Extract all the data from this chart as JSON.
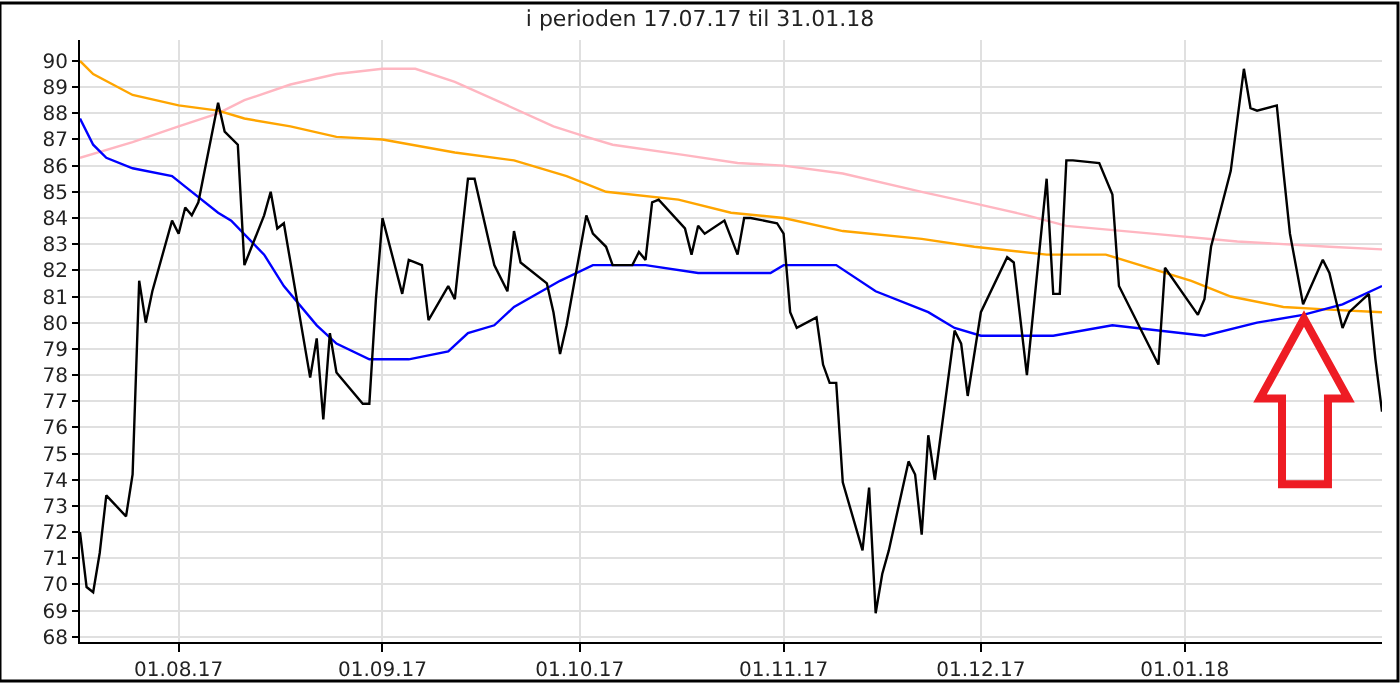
{
  "chart_data": {
    "type": "line",
    "title": "i perioden 17.07.17 til 31.01.18",
    "xlim": [
      "2017-07-17",
      "2018-01-31"
    ],
    "xticks": [
      {
        "value": "2017-08-01",
        "label": "01.08.17"
      },
      {
        "value": "2017-09-01",
        "label": "01.09.17"
      },
      {
        "value": "2017-10-01",
        "label": "01.10.17"
      },
      {
        "value": "2017-11-01",
        "label": "01.11.17"
      },
      {
        "value": "2017-12-01",
        "label": "01.12.17"
      },
      {
        "value": "2018-01-01",
        "label": "01.01.18"
      }
    ],
    "ylim": [
      67.8,
      90.8
    ],
    "yticks": [
      68,
      69,
      70,
      71,
      72,
      73,
      74,
      75,
      76,
      77,
      78,
      79,
      80,
      81,
      82,
      83,
      84,
      85,
      86,
      87,
      88,
      89,
      90
    ],
    "grid": true,
    "marker": "none",
    "line_style": "solid",
    "series": [
      {
        "color": "#ffb6c1",
        "x": [
          "2017-07-17",
          "2017-07-25",
          "2017-08-01",
          "2017-08-07",
          "2017-08-11",
          "2017-08-18",
          "2017-08-25",
          "2017-09-01",
          "2017-09-06",
          "2017-09-12",
          "2017-09-20",
          "2017-09-27",
          "2017-10-02",
          "2017-10-06",
          "2017-10-17",
          "2017-10-25",
          "2017-11-01",
          "2017-11-10",
          "2017-11-22",
          "2017-12-01",
          "2017-12-08",
          "2017-12-14",
          "2017-12-27",
          "2018-01-09",
          "2018-01-23",
          "2018-01-31"
        ],
        "values": [
          86.3,
          86.9,
          87.5,
          88.0,
          88.5,
          89.1,
          89.5,
          89.7,
          89.7,
          89.2,
          88.3,
          87.5,
          87.1,
          86.8,
          86.4,
          86.1,
          86.0,
          85.7,
          85.0,
          84.5,
          84.1,
          83.7,
          83.4,
          83.1,
          82.9,
          82.8
        ]
      },
      {
        "color": "#ffa500",
        "x": [
          "2017-07-17",
          "2017-07-19",
          "2017-07-25",
          "2017-08-01",
          "2017-08-07",
          "2017-08-11",
          "2017-08-18",
          "2017-08-25",
          "2017-09-01",
          "2017-09-12",
          "2017-09-21",
          "2017-09-29",
          "2017-10-05",
          "2017-10-16",
          "2017-10-24",
          "2017-11-01",
          "2017-11-10",
          "2017-11-22",
          "2017-11-30",
          "2017-12-11",
          "2017-12-20",
          "2018-01-02",
          "2018-01-08",
          "2018-01-16",
          "2018-01-23",
          "2018-01-31"
        ],
        "values": [
          90.0,
          89.5,
          88.7,
          88.3,
          88.1,
          87.8,
          87.5,
          87.1,
          87.0,
          86.5,
          86.2,
          85.6,
          85.0,
          84.7,
          84.2,
          84.0,
          83.5,
          83.2,
          82.9,
          82.6,
          82.6,
          81.6,
          81.0,
          80.6,
          80.5,
          80.4
        ]
      },
      {
        "color": "#0000ff",
        "x": [
          "2017-07-17",
          "2017-07-19",
          "2017-07-21",
          "2017-07-25",
          "2017-07-31",
          "2017-08-02",
          "2017-08-07",
          "2017-08-09",
          "2017-08-14",
          "2017-08-17",
          "2017-08-22",
          "2017-08-25",
          "2017-08-30",
          "2017-09-05",
          "2017-09-11",
          "2017-09-14",
          "2017-09-18",
          "2017-09-21",
          "2017-09-28",
          "2017-10-03",
          "2017-10-11",
          "2017-10-19",
          "2017-10-30",
          "2017-11-01",
          "2017-11-09",
          "2017-11-15",
          "2017-11-23",
          "2017-11-27",
          "2017-12-01",
          "2017-12-12",
          "2017-12-21",
          "2018-01-04",
          "2018-01-12",
          "2018-01-19",
          "2018-01-25",
          "2018-01-31"
        ],
        "values": [
          87.8,
          86.8,
          86.3,
          85.9,
          85.6,
          85.2,
          84.2,
          83.9,
          82.6,
          81.4,
          79.9,
          79.2,
          78.6,
          78.6,
          78.9,
          79.6,
          79.9,
          80.6,
          81.6,
          82.2,
          82.2,
          81.9,
          81.9,
          82.2,
          82.2,
          81.2,
          80.4,
          79.8,
          79.5,
          79.5,
          79.9,
          79.5,
          80.0,
          80.3,
          80.7,
          81.4
        ]
      },
      {
        "color": "#000000",
        "x": [
          "2017-07-17",
          "2017-07-18",
          "2017-07-19",
          "2017-07-20",
          "2017-07-21",
          "2017-07-24",
          "2017-07-25",
          "2017-07-26",
          "2017-07-27",
          "2017-07-28",
          "2017-07-31",
          "2017-08-01",
          "2017-08-02",
          "2017-08-03",
          "2017-08-04",
          "2017-08-07",
          "2017-08-08",
          "2017-08-10",
          "2017-08-11",
          "2017-08-14",
          "2017-08-15",
          "2017-08-16",
          "2017-08-17",
          "2017-08-21",
          "2017-08-22",
          "2017-08-23",
          "2017-08-24",
          "2017-08-25",
          "2017-08-29",
          "2017-08-30",
          "2017-08-31",
          "2017-09-01",
          "2017-09-04",
          "2017-09-05",
          "2017-09-07",
          "2017-09-08",
          "2017-09-11",
          "2017-09-12",
          "2017-09-14",
          "2017-09-15",
          "2017-09-18",
          "2017-09-20",
          "2017-09-21",
          "2017-09-22",
          "2017-09-26",
          "2017-09-27",
          "2017-09-28",
          "2017-09-29",
          "2017-10-02",
          "2017-10-03",
          "2017-10-05",
          "2017-10-06",
          "2017-10-09",
          "2017-10-10",
          "2017-10-11",
          "2017-10-12",
          "2017-10-13",
          "2017-10-17",
          "2017-10-18",
          "2017-10-19",
          "2017-10-20",
          "2017-10-23",
          "2017-10-25",
          "2017-10-26",
          "2017-10-27",
          "2017-10-31",
          "2017-11-01",
          "2017-11-02",
          "2017-11-03",
          "2017-11-06",
          "2017-11-07",
          "2017-11-08",
          "2017-11-09",
          "2017-11-10",
          "2017-11-13",
          "2017-11-14",
          "2017-11-15",
          "2017-11-16",
          "2017-11-17",
          "2017-11-20",
          "2017-11-21",
          "2017-11-22",
          "2017-11-23",
          "2017-11-24",
          "2017-11-27",
          "2017-11-28",
          "2017-11-29",
          "2017-12-01",
          "2017-12-05",
          "2017-12-06",
          "2017-12-08",
          "2017-12-11",
          "2017-12-12",
          "2017-12-13",
          "2017-12-14",
          "2017-12-15",
          "2017-12-19",
          "2017-12-21",
          "2017-12-22",
          "2017-12-28",
          "2017-12-29",
          "2018-01-03",
          "2018-01-04",
          "2018-01-05",
          "2018-01-08",
          "2018-01-10",
          "2018-01-11",
          "2018-01-12",
          "2018-01-15",
          "2018-01-16",
          "2018-01-17",
          "2018-01-19",
          "2018-01-22",
          "2018-01-23",
          "2018-01-25",
          "2018-01-26",
          "2018-01-29",
          "2018-01-30",
          "2018-01-31"
        ],
        "values": [
          72.0,
          69.9,
          69.7,
          71.2,
          73.4,
          72.6,
          74.2,
          81.6,
          80.0,
          81.2,
          83.9,
          83.4,
          84.4,
          84.1,
          84.6,
          88.4,
          87.3,
          86.8,
          82.2,
          84.1,
          85.0,
          83.6,
          83.8,
          77.9,
          79.4,
          76.3,
          79.6,
          78.1,
          76.9,
          76.9,
          80.9,
          84.0,
          81.1,
          82.4,
          82.2,
          80.1,
          81.4,
          80.9,
          85.5,
          85.5,
          82.2,
          81.2,
          83.5,
          82.3,
          81.5,
          80.4,
          78.8,
          79.9,
          84.1,
          83.4,
          82.9,
          82.2,
          82.2,
          82.7,
          82.4,
          84.6,
          84.7,
          83.6,
          82.6,
          83.7,
          83.4,
          83.9,
          82.6,
          84.0,
          84.0,
          83.8,
          83.4,
          80.4,
          79.8,
          80.2,
          78.4,
          77.7,
          77.7,
          73.9,
          71.3,
          73.7,
          68.9,
          70.4,
          71.3,
          74.7,
          74.2,
          71.9,
          75.7,
          74.0,
          79.7,
          79.2,
          77.2,
          80.4,
          82.5,
          82.3,
          78.0,
          85.5,
          81.1,
          81.1,
          86.2,
          86.2,
          86.1,
          84.9,
          81.4,
          78.4,
          82.1,
          80.3,
          80.9,
          82.9,
          85.8,
          89.7,
          88.2,
          88.1,
          88.3,
          85.8,
          83.4,
          80.7,
          82.4,
          81.9,
          79.8,
          80.4,
          81.1,
          78.6,
          76.6
        ]
      }
    ]
  }
}
